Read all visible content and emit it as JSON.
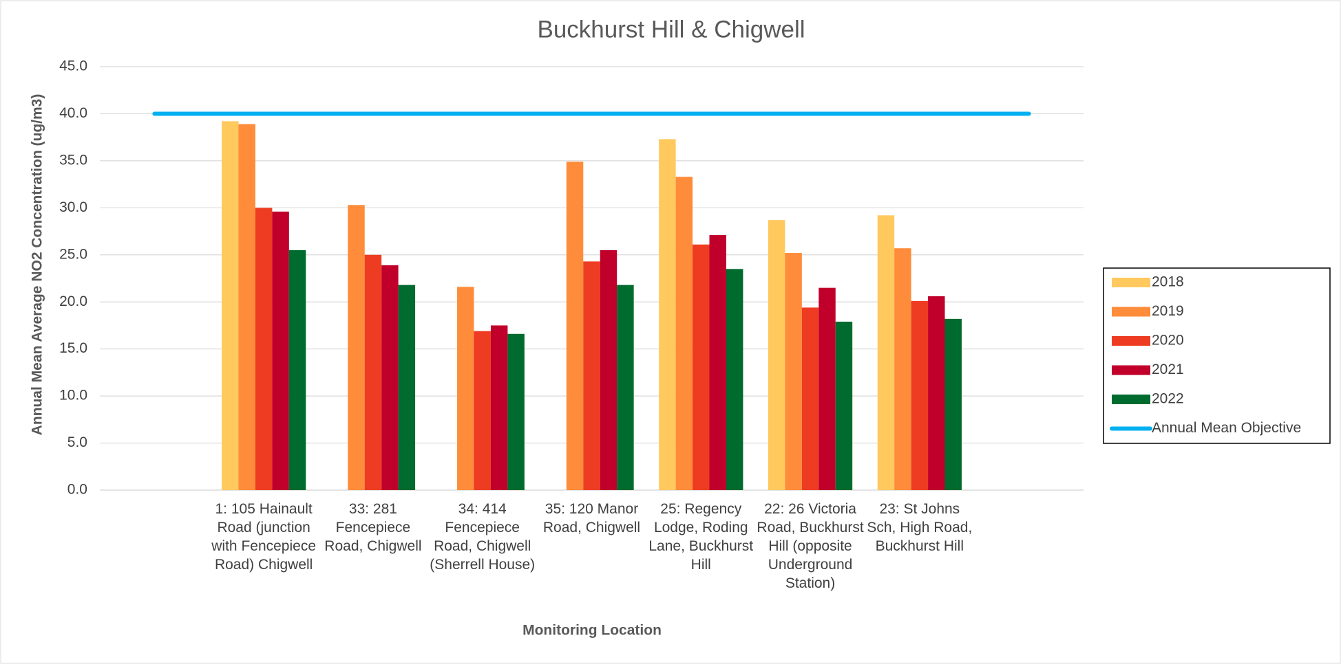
{
  "chart_data": {
    "type": "bar",
    "title": "Buckhurst Hill & Chigwell",
    "y_label": "Annual Mean Average NO2 Concentration (ug/m3)",
    "x_label": "Monitoring Location",
    "categories": [
      null,
      "1: 105 Hainault Road (junction with Fencepiece Road) Chigwell",
      "33: 281 Fencepiece Road, Chigwell",
      "34: 414 Fencepiece Road, Chigwell (Sherrell House)",
      "35: 120 Manor Road, Chigwell",
      "25: Regency Lodge, Roding Lane, Buckhurst Hill",
      "22: 26 Victoria Road, Buckhurst Hill (opposite Underground Station)",
      "23: St Johns Sch, High Road, Buckhurst Hill",
      null
    ],
    "series": [
      {
        "name": "2018",
        "color": "#FFC95E",
        "values": [
          null,
          39.2,
          null,
          null,
          null,
          37.3,
          28.7,
          29.2,
          null
        ]
      },
      {
        "name": "2019",
        "color": "#FF8C3A",
        "values": [
          null,
          38.9,
          30.3,
          21.6,
          34.9,
          33.3,
          25.2,
          25.7,
          null
        ]
      },
      {
        "name": "2020",
        "color": "#EE3C23",
        "values": [
          null,
          30.0,
          25.0,
          16.9,
          24.3,
          26.1,
          19.4,
          20.1,
          null
        ]
      },
      {
        "name": "2021",
        "color": "#C0002A",
        "values": [
          null,
          29.6,
          23.9,
          17.5,
          25.5,
          27.1,
          21.5,
          20.6,
          null
        ]
      },
      {
        "name": "2022",
        "color": "#006B2E",
        "values": [
          null,
          25.5,
          21.8,
          16.6,
          21.8,
          23.5,
          17.9,
          18.2,
          null
        ]
      },
      {
        "name": "Annual Mean Objective",
        "color": "#00B0F0",
        "type": "line",
        "values": [
          40,
          40,
          40,
          40,
          40,
          40,
          40,
          40,
          40
        ]
      }
    ],
    "ylim": [
      0,
      45
    ],
    "yticks": [
      {
        "value": 0,
        "label": "0.0"
      },
      {
        "value": 5,
        "label": "5.0"
      },
      {
        "value": 10,
        "label": "10.0"
      },
      {
        "value": 15,
        "label": "15.0"
      },
      {
        "value": 20,
        "label": "20.0"
      },
      {
        "value": 25,
        "label": "25.0"
      },
      {
        "value": 30,
        "label": "30.0"
      },
      {
        "value": 35,
        "label": "35.0"
      },
      {
        "value": 40,
        "label": "40.0"
      },
      {
        "value": 45,
        "label": "45.0"
      }
    ],
    "grid": true,
    "legend": "right"
  }
}
